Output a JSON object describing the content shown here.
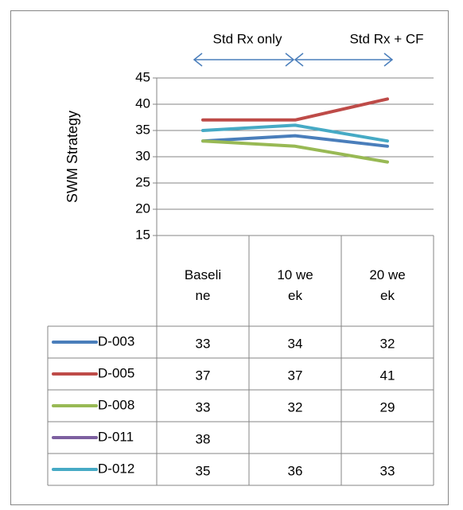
{
  "chart_data": {
    "type": "line",
    "y_label": "SWM Strategy",
    "annotations": [
      "Std Rx only",
      "Std Rx + CF"
    ],
    "categories": [
      "Baseline",
      "10 week",
      "20 week"
    ],
    "series": [
      {
        "name": "D-003",
        "color": "#4a7ebb",
        "values": [
          33,
          34,
          32
        ]
      },
      {
        "name": "D-005",
        "color": "#be4b48",
        "values": [
          37,
          37,
          41
        ]
      },
      {
        "name": "D-008",
        "color": "#98b954",
        "values": [
          33,
          32,
          29
        ]
      },
      {
        "name": "D-011",
        "color": "#7d60a0",
        "values": [
          38,
          null,
          null
        ]
      },
      {
        "name": "D-012",
        "color": "#46aac5",
        "values": [
          35,
          36,
          33
        ]
      }
    ],
    "ylim": [
      15,
      45
    ],
    "yticks": [
      15,
      20,
      25,
      30,
      35,
      40,
      45
    ],
    "grid": true
  }
}
